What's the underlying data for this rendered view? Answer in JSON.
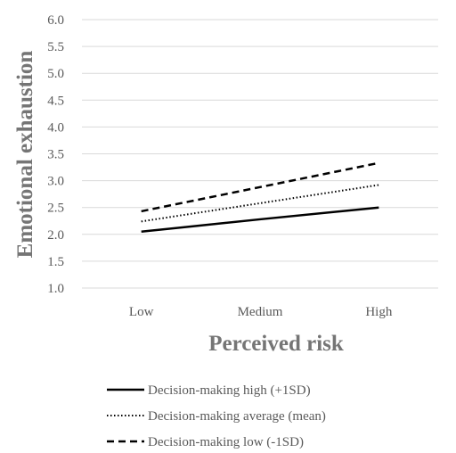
{
  "chart_data": {
    "type": "line",
    "xlabel": "Perceived risk",
    "ylabel": "Emotional exhaustion",
    "categories": [
      "Low",
      "Medium",
      "High"
    ],
    "ylim": [
      1.0,
      6.0
    ],
    "yticks": [
      "1.0",
      "1.5",
      "2.0",
      "2.5",
      "3.0",
      "3.5",
      "4.0",
      "4.5",
      "5.0",
      "5.5",
      "6.0"
    ],
    "grid": "horizontal",
    "legend_position": "bottom",
    "series": [
      {
        "name": "Decision-making high (+1SD)",
        "values": [
          2.05,
          2.28,
          2.5
        ],
        "color": "#000000",
        "style": "solid"
      },
      {
        "name": "Decision-making average (mean)",
        "values": [
          2.24,
          2.58,
          2.92
        ],
        "color": "#000000",
        "style": "dotted"
      },
      {
        "name": "Decision-making low (-1SD)",
        "values": [
          2.43,
          2.88,
          3.33
        ],
        "color": "#000000",
        "style": "dashed"
      }
    ]
  }
}
